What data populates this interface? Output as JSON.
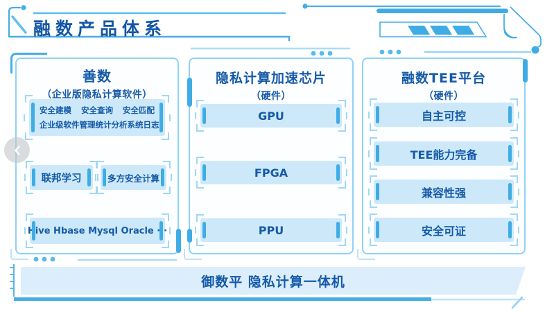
{
  "title": "融数产品体系",
  "carousel": {
    "prev": "‹"
  },
  "columns": [
    {
      "title": "善数",
      "subtitle": "（企业版隐私计算软件）",
      "features": [
        [
          "安全建模",
          "安全查询",
          "安全匹配"
        ],
        [
          "企业级软件管理",
          "统计分析",
          "系统日志"
        ]
      ],
      "chips": [
        "联邦学习",
        "多方安全计算"
      ],
      "wide_chip": "Hive Hbase Mysql Oracle ···"
    },
    {
      "title": "隐私计算加速芯片",
      "subtitle": "（硬件）",
      "chips": [
        "GPU",
        "FPGA",
        "PPU"
      ]
    },
    {
      "title": "融数TEE平台",
      "subtitle": "（硬件）",
      "chips": [
        "自主可控",
        "TEE能力完备",
        "兼容性强",
        "安全可证"
      ]
    }
  ],
  "footer": {
    "label": "御数平 隐私计算一体机"
  },
  "colors": {
    "accent": "#3FACE6",
    "accent_dark": "#45AEE5",
    "border_light": "#8ED2F4",
    "chip_fill": "#CDE9F9",
    "bar_fill": "#DCEEFB",
    "text_blue": "#155AA8"
  }
}
